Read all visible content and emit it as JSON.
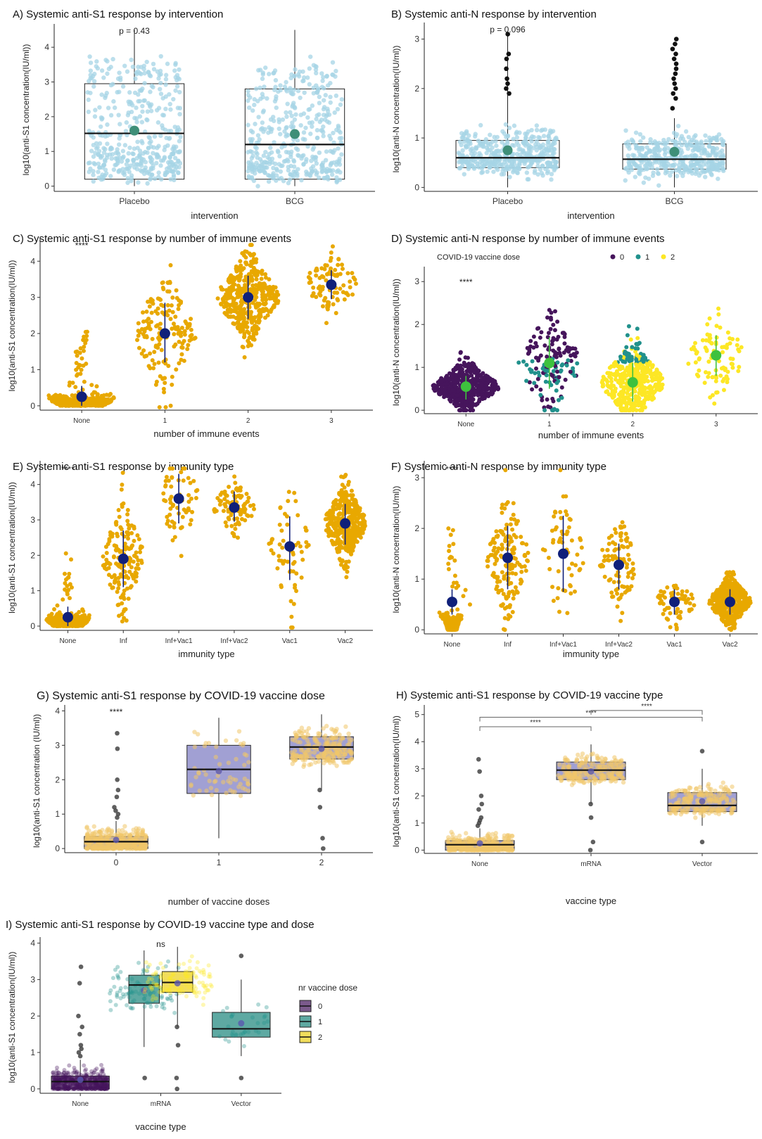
{
  "chart_data": [
    {
      "id": "A",
      "type": "box-jitter",
      "title": "A) Systemic anti-S1 response by intervention",
      "xlabel": "intervention",
      "ylabel": "log10(anti-S1 concentration(IU/ml))",
      "ylim": [
        -0.15,
        4.55
      ],
      "yticks": [
        0,
        1,
        2,
        3,
        4
      ],
      "categories": [
        "Placebo",
        "BCG"
      ],
      "annotation": "p = 0.43",
      "box": [
        {
          "q1": 0.2,
          "median": 1.52,
          "q3": 2.95,
          "whisker_low": 0.0,
          "whisker_high": 4.5,
          "mean": 1.6
        },
        {
          "q1": 0.2,
          "median": 1.2,
          "q3": 2.8,
          "whisker_low": 0.0,
          "whisker_high": 4.5,
          "mean": 1.5
        }
      ],
      "point_color": "#a6d4e6",
      "mean_color": "#3f8f78"
    },
    {
      "id": "B",
      "type": "box-jitter",
      "title": "B) Systemic anti-N response by intervention",
      "xlabel": "intervention",
      "ylabel": "log10(anti-N concentration(IU/ml))",
      "ylim": [
        -0.08,
        3.25
      ],
      "yticks": [
        0,
        1,
        2,
        3
      ],
      "categories": [
        "Placebo",
        "BCG"
      ],
      "annotation": "p = 0.096",
      "box": [
        {
          "q1": 0.4,
          "median": 0.6,
          "q3": 0.95,
          "whisker_low": 0.0,
          "whisker_high": 3.1,
          "mean": 0.75
        },
        {
          "q1": 0.37,
          "median": 0.57,
          "q3": 0.88,
          "whisker_low": 0.0,
          "whisker_high": 1.4,
          "mean": 0.72
        }
      ],
      "point_color": "#a6d4e6",
      "mean_color": "#3f8f78"
    },
    {
      "id": "C",
      "type": "beeswarm",
      "title": "C) Systemic anti-S1 response by number of immune events",
      "xlabel": "number of immune events",
      "ylabel": "log10(anti-S1 concentration(IU/ml))",
      "ylim": [
        -0.12,
        4.55
      ],
      "yticks": [
        0,
        1,
        2,
        3,
        4
      ],
      "categories": [
        "None",
        "1",
        "2",
        "3"
      ],
      "annotation": "****",
      "groups": [
        {
          "mean": 0.25,
          "sd_low": 0.0,
          "sd_high": 0.55
        },
        {
          "mean": 2.0,
          "sd_low": 1.2,
          "sd_high": 2.85
        },
        {
          "mean": 3.0,
          "sd_low": 2.4,
          "sd_high": 3.6
        },
        {
          "mean": 3.35,
          "sd_low": 2.95,
          "sd_high": 3.75
        }
      ],
      "point_color": "#e8a800",
      "mean_color": "#10207a"
    },
    {
      "id": "D",
      "type": "beeswarm",
      "title": "D) Systemic anti-N response by number of immune events",
      "xlabel": "number of immune events",
      "ylabel": "log10(anti-N concentration(IU/ml))",
      "ylim": [
        -0.08,
        3.25
      ],
      "yticks": [
        0,
        1,
        2,
        3
      ],
      "categories": [
        "None",
        "1",
        "2",
        "3"
      ],
      "annotation": "****",
      "legend": {
        "title": "COVID-19 vaccine dose",
        "labels": [
          "0",
          "1",
          "2"
        ],
        "colors": [
          "#46155c",
          "#21918c",
          "#fde725"
        ]
      },
      "groups": [
        {
          "mean": 0.55,
          "sd_low": 0.25,
          "sd_high": 0.8
        },
        {
          "mean": 1.1,
          "sd_low": 0.5,
          "sd_high": 1.7
        },
        {
          "mean": 0.65,
          "sd_low": 0.2,
          "sd_high": 1.1
        },
        {
          "mean": 1.28,
          "sd_low": 0.8,
          "sd_high": 1.75
        }
      ],
      "mean_color": "#3ec13e"
    },
    {
      "id": "E",
      "type": "beeswarm",
      "title": "E) Systemic anti-S1 response by immunity type",
      "xlabel": "immunity type",
      "ylabel": "log10(anti-S1 concentration(IU/ml))",
      "ylim": [
        -0.12,
        4.55
      ],
      "yticks": [
        0,
        1,
        2,
        3,
        4
      ],
      "categories": [
        "None",
        "Inf",
        "Inf+Vac1",
        "Inf+Vac2",
        "Vac1",
        "Vac2"
      ],
      "annotation": "****",
      "groups": [
        {
          "mean": 0.25,
          "sd_low": 0.0,
          "sd_high": 0.55
        },
        {
          "mean": 1.9,
          "sd_low": 1.1,
          "sd_high": 2.7
        },
        {
          "mean": 3.6,
          "sd_low": 2.9,
          "sd_high": 4.3
        },
        {
          "mean": 3.35,
          "sd_low": 2.95,
          "sd_high": 3.8
        },
        {
          "mean": 2.25,
          "sd_low": 1.3,
          "sd_high": 3.1
        },
        {
          "mean": 2.9,
          "sd_low": 2.3,
          "sd_high": 3.45
        }
      ],
      "point_color": "#e8a800",
      "mean_color": "#10207a"
    },
    {
      "id": "F",
      "type": "beeswarm",
      "title": "F) Systemic anti-N response by immunity type",
      "xlabel": "immunity type",
      "ylabel": "log10(anti-N concentration(IU/ml))",
      "ylim": [
        -0.08,
        3.25
      ],
      "yticks": [
        0,
        1,
        2,
        3
      ],
      "categories": [
        "None",
        "Inf",
        "Inf+Vac1",
        "Inf+Vac2",
        "Vac1",
        "Vac2"
      ],
      "annotation": "****",
      "groups": [
        {
          "mean": 0.55,
          "sd_low": 0.3,
          "sd_high": 0.8
        },
        {
          "mean": 1.42,
          "sd_low": 0.8,
          "sd_high": 2.05
        },
        {
          "mean": 1.5,
          "sd_low": 0.75,
          "sd_high": 2.25
        },
        {
          "mean": 1.28,
          "sd_low": 0.8,
          "sd_high": 1.7
        },
        {
          "mean": 0.55,
          "sd_low": 0.3,
          "sd_high": 0.8
        },
        {
          "mean": 0.55,
          "sd_low": 0.3,
          "sd_high": 0.8
        }
      ],
      "point_color": "#e8a800",
      "mean_color": "#10207a"
    },
    {
      "id": "G",
      "type": "box-jitter",
      "title": "G) Systemic anti-S1 response by COVID-19 vaccine dose",
      "xlabel": "number of vaccine doses",
      "ylabel": "log10(anti-S1 concentration (IU/ml))",
      "ylim": [
        -0.12,
        4.05
      ],
      "yticks": [
        0,
        1,
        2,
        3,
        4
      ],
      "categories": [
        "0",
        "1",
        "2"
      ],
      "annotation": "****",
      "box": [
        {
          "q1": 0.0,
          "median": 0.2,
          "q3": 0.35,
          "whisker_low": 0.0,
          "whisker_high": 0.8,
          "mean": 0.25
        },
        {
          "q1": 1.6,
          "median": 2.3,
          "q3": 3.0,
          "whisker_low": 0.3,
          "whisker_high": 3.8,
          "mean": 2.25
        },
        {
          "q1": 2.6,
          "median": 2.95,
          "q3": 3.25,
          "whisker_low": 1.7,
          "whisker_high": 3.9,
          "mean": 2.9
        }
      ],
      "point_color": "#f1c76a",
      "mean_color": "#5a57b0"
    },
    {
      "id": "H",
      "type": "box-jitter",
      "title": "H) Systemic anti-S1 response by COVID-19 vaccine type",
      "xlabel": "vaccine type",
      "ylabel": "log10(anti-S1 concentration(IU/ml))",
      "ylim": [
        -0.12,
        5.2
      ],
      "yticks": [
        0,
        1,
        2,
        3,
        4,
        5
      ],
      "categories": [
        "None",
        "mRNA",
        "Vector"
      ],
      "brackets": [
        {
          "from": 0,
          "to": 1,
          "y": 4.55,
          "label": "****"
        },
        {
          "from": 0,
          "to": 2,
          "y": 4.9,
          "label": "****"
        },
        {
          "from": 1,
          "to": 2,
          "y": 5.15,
          "label": "****"
        }
      ],
      "box": [
        {
          "q1": 0.0,
          "median": 0.2,
          "q3": 0.35,
          "whisker_low": 0.0,
          "whisker_high": 0.8,
          "mean": 0.25
        },
        {
          "q1": 2.6,
          "median": 2.95,
          "q3": 3.25,
          "whisker_low": 1.7,
          "whisker_high": 3.9,
          "mean": 2.9
        },
        {
          "q1": 1.42,
          "median": 1.65,
          "q3": 2.12,
          "whisker_low": 0.9,
          "whisker_high": 3.0,
          "mean": 1.8
        }
      ],
      "point_color": "#f1c76a",
      "mean_color": "#5a57b0"
    },
    {
      "id": "I",
      "type": "box-jitter",
      "title": "I) Systemic anti-S1 response by COVID-19 vaccine type and dose",
      "xlabel": "vaccine type",
      "ylabel": "log10(anti-S1 concentration(IU/ml))",
      "ylim": [
        -0.12,
        4.05
      ],
      "yticks": [
        0,
        1,
        2,
        3,
        4
      ],
      "categories": [
        "None",
        "mRNA",
        "Vector"
      ],
      "annotation": "ns",
      "legend": {
        "title": "nr vaccine dose",
        "labels": [
          "0",
          "1",
          "2"
        ],
        "colors": [
          "#46155c",
          "#21918c",
          "#fde725"
        ]
      },
      "box": [
        {
          "cat": 0,
          "dose": 0,
          "q1": 0.0,
          "median": 0.2,
          "q3": 0.35,
          "whisker_low": 0.0,
          "whisker_high": 0.8,
          "mean": 0.25
        },
        {
          "cat": 1,
          "dose": 1,
          "q1": 2.35,
          "median": 2.85,
          "q3": 3.12,
          "whisker_low": 1.15,
          "whisker_high": 3.8,
          "mean": 2.7
        },
        {
          "cat": 1,
          "dose": 2,
          "q1": 2.65,
          "median": 2.92,
          "q3": 3.22,
          "whisker_low": 1.7,
          "whisker_high": 3.9,
          "mean": 2.9
        },
        {
          "cat": 2,
          "dose": 1,
          "q1": 1.42,
          "median": 1.65,
          "q3": 2.1,
          "whisker_low": 0.9,
          "whisker_high": 3.0,
          "mean": 1.8
        }
      ],
      "mean_color": "#5a57b0"
    }
  ]
}
